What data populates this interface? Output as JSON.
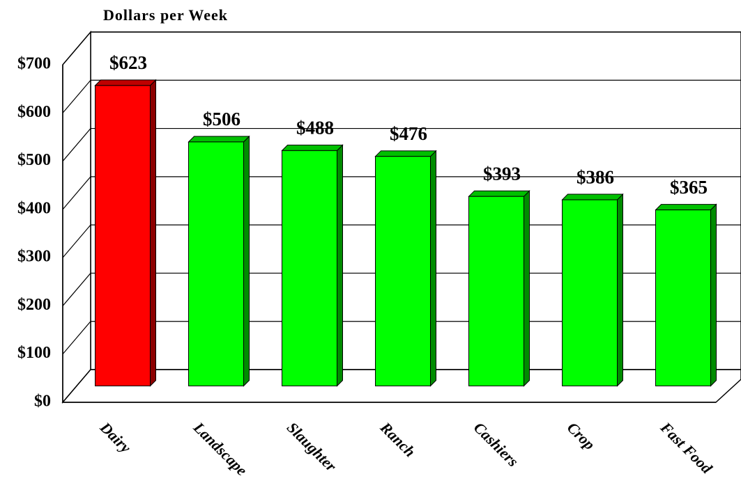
{
  "chart_data": {
    "type": "bar3d",
    "title": "Dollars per Week",
    "categories": [
      "Dairy",
      "Landscape",
      "Slaughter",
      "Ranch",
      "Cashiers",
      "Crop",
      "Fast Food"
    ],
    "values": [
      623,
      506,
      488,
      476,
      393,
      386,
      365
    ],
    "value_labels": [
      "$623",
      "$506",
      "$488",
      "$476",
      "$393",
      "$386",
      "$365"
    ],
    "colors": [
      "#ff0000",
      "#00ff00",
      "#00ff00",
      "#00ff00",
      "#00ff00",
      "#00ff00",
      "#00ff00"
    ],
    "ylim": [
      0,
      700
    ],
    "yticks": [
      {
        "value": 0,
        "label": "$0"
      },
      {
        "value": 100,
        "label": "$100"
      },
      {
        "value": 200,
        "label": "$200"
      },
      {
        "value": 300,
        "label": "$300"
      },
      {
        "value": 400,
        "label": "$400"
      },
      {
        "value": 500,
        "label": "$500"
      },
      {
        "value": 600,
        "label": "$600"
      },
      {
        "value": 700,
        "label": "$700"
      }
    ],
    "grid": true
  }
}
